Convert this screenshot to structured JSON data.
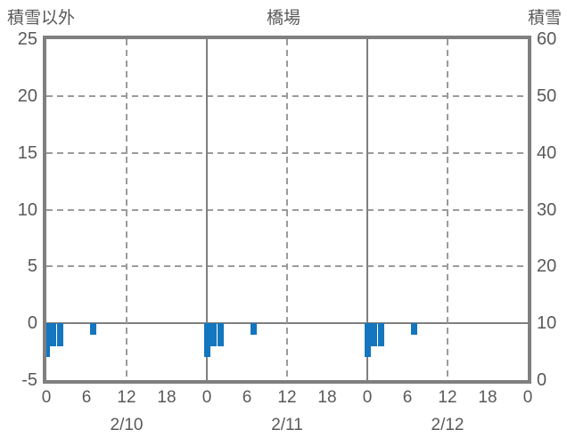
{
  "header": {
    "left_axis_title": "積雪以外",
    "chart_title": "橋場",
    "right_axis_title": "積雪"
  },
  "colors": {
    "bar": "#1476be",
    "axis": "#7f7f7f",
    "gridline": "#9b9b9b",
    "text": "#595959",
    "background": "#ffffff"
  },
  "chart_data": {
    "type": "bar",
    "title": "橋場",
    "left_axis": {
      "label": "積雪以外",
      "ticks": [
        25,
        20,
        15,
        10,
        5,
        0,
        -5
      ],
      "range": [
        -5,
        25
      ]
    },
    "right_axis": {
      "label": "積雪",
      "ticks": [
        60,
        50,
        40,
        30,
        20,
        10,
        0
      ],
      "range": [
        0,
        60
      ]
    },
    "x_axis": {
      "days": [
        "2/10",
        "2/11",
        "2/12"
      ],
      "hour_tick_labels": [
        0,
        6,
        12,
        18
      ],
      "trailing_tick_label": 0,
      "hours_per_day": 24
    },
    "gridlines": {
      "horizontal_dashed_at": [
        20,
        15,
        10,
        5
      ],
      "zero_line_at": 0,
      "vertical_dashed_at_hour": [
        12
      ],
      "vertical_solid_at_day_boundaries": true
    },
    "legend_position": "none",
    "series": [
      {
        "name": "積雪以外",
        "axis": "left",
        "color": "#1476be",
        "points": [
          {
            "date": "2/10",
            "hour": 0,
            "value": -3
          },
          {
            "date": "2/10",
            "hour": 1,
            "value": -2
          },
          {
            "date": "2/10",
            "hour": 2,
            "value": -2
          },
          {
            "date": "2/10",
            "hour": 7,
            "value": -1
          },
          {
            "date": "2/11",
            "hour": 0,
            "value": -3
          },
          {
            "date": "2/11",
            "hour": 1,
            "value": -2
          },
          {
            "date": "2/11",
            "hour": 2,
            "value": -2
          },
          {
            "date": "2/11",
            "hour": 7,
            "value": -1
          },
          {
            "date": "2/12",
            "hour": 0,
            "value": -3
          },
          {
            "date": "2/12",
            "hour": 1,
            "value": -2
          },
          {
            "date": "2/12",
            "hour": 2,
            "value": -2
          },
          {
            "date": "2/12",
            "hour": 7,
            "value": -1
          }
        ]
      },
      {
        "name": "積雪",
        "axis": "right",
        "points": []
      }
    ]
  }
}
